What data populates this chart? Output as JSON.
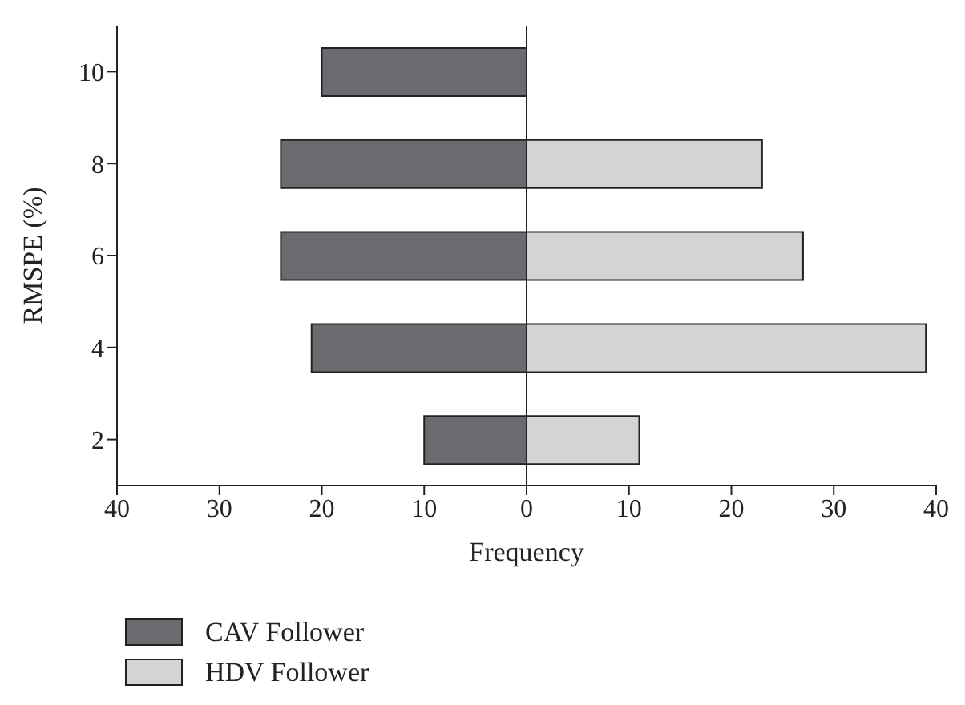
{
  "chart_data": {
    "type": "bar",
    "orientation": "horizontal",
    "stacked": true,
    "xlabel": "Frequency",
    "ylabel": "RMSPE (%)",
    "categories": [
      "10",
      "8",
      "6",
      "4",
      "2"
    ],
    "series": [
      {
        "name": "CAV Follower",
        "color": "#6a6b6e",
        "values": [
          -20,
          -24,
          -24,
          -21,
          -10
        ]
      },
      {
        "name": "HDV Follower",
        "color": "#d3d4d6",
        "values": [
          null,
          23,
          27,
          39,
          11
        ]
      }
    ],
    "xlim": [
      -40,
      40
    ],
    "xticks": [
      {
        "value": -40,
        "label": "40"
      },
      {
        "value": -30,
        "label": "30"
      },
      {
        "value": -20,
        "label": "20"
      },
      {
        "value": -10,
        "label": "10"
      },
      0,
      10,
      20,
      30,
      40
    ],
    "ref_lines": [
      {
        "axis": "x",
        "value": 0
      }
    ],
    "grid": false,
    "legend": "bottom left"
  }
}
